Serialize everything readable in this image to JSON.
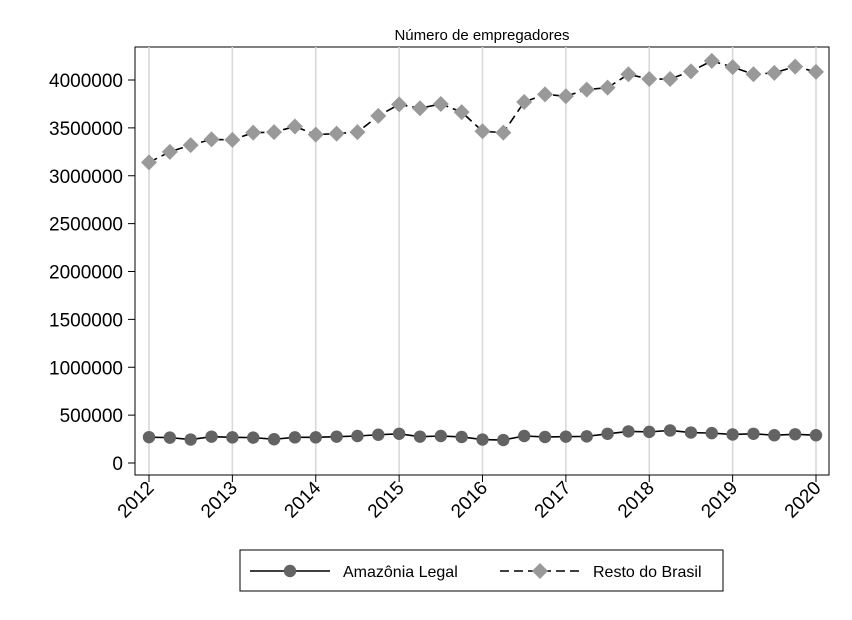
{
  "chart_data": {
    "type": "line",
    "title": "Número de empregadores",
    "xlabel": "",
    "ylabel": "",
    "xlim": [
      2012,
      2020
    ],
    "ylim": [
      0,
      4000000
    ],
    "yticks": [
      0,
      500000,
      1000000,
      1500000,
      2000000,
      2500000,
      3000000,
      3500000,
      4000000
    ],
    "ytick_labels": [
      "0",
      "500000",
      "1000000",
      "1500000",
      "2000000",
      "2500000",
      "3000000",
      "3500000",
      "4000000"
    ],
    "xticks": [
      2012,
      2013,
      2014,
      2015,
      2016,
      2017,
      2018,
      2019,
      2020
    ],
    "xtick_labels": [
      "2012",
      "2013",
      "2014",
      "2015",
      "2016",
      "2017",
      "2018",
      "2019",
      "2020"
    ],
    "grid": "vertical",
    "legend_position": "bottom",
    "x": [
      2012.0,
      2012.25,
      2012.5,
      2012.75,
      2013.0,
      2013.25,
      2013.5,
      2013.75,
      2014.0,
      2014.25,
      2014.5,
      2014.75,
      2015.0,
      2015.25,
      2015.5,
      2015.75,
      2016.0,
      2016.25,
      2016.5,
      2016.75,
      2017.0,
      2017.25,
      2017.5,
      2017.75,
      2018.0,
      2018.25,
      2018.5,
      2018.75,
      2019.0,
      2019.25,
      2019.5,
      2019.75,
      2020.0
    ],
    "series": [
      {
        "name": "Amazônia Legal",
        "line": "solid",
        "marker": "circle",
        "color": "#636363",
        "values": [
          270000,
          265000,
          245000,
          275000,
          268000,
          265000,
          248000,
          268000,
          268000,
          275000,
          282000,
          295000,
          305000,
          275000,
          282000,
          272000,
          245000,
          240000,
          282000,
          272000,
          275000,
          278000,
          305000,
          330000,
          325000,
          340000,
          318000,
          312000,
          298000,
          305000,
          290000,
          300000,
          290000
        ]
      },
      {
        "name": "Resto do Brasil",
        "line": "dashed",
        "marker": "diamond",
        "color": "#999999",
        "values": [
          3140000,
          3250000,
          3320000,
          3380000,
          3375000,
          3450000,
          3455000,
          3515000,
          3430000,
          3440000,
          3455000,
          3625000,
          3745000,
          3705000,
          3750000,
          3665000,
          3465000,
          3450000,
          3770000,
          3850000,
          3830000,
          3900000,
          3920000,
          4060000,
          4010000,
          4010000,
          4090000,
          4200000,
          4135000,
          4060000,
          4075000,
          4140000,
          4085000
        ]
      }
    ]
  }
}
